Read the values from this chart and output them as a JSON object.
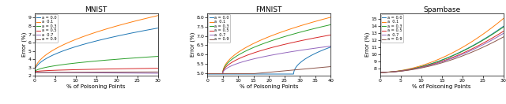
{
  "panels": [
    {
      "title": "MNIST",
      "xlabel": "% of Poisoning Points",
      "ylabel": "Error (%)",
      "xlim": [
        0,
        30
      ],
      "ylim": [
        2.0,
        9.5
      ],
      "yticks": [
        2,
        3,
        4,
        5,
        6,
        7,
        8,
        9
      ],
      "xticks": [
        0,
        5,
        10,
        15,
        20,
        25,
        30
      ],
      "alphas": [
        "0.0",
        "0.1",
        "0.3",
        "0.5",
        "0.7",
        "0.9"
      ],
      "x_max": 30,
      "curves": {
        "0.0": {
          "start": 2.45,
          "end": 7.75,
          "shape": "sqrt",
          "delay": 0
        },
        "0.1": {
          "start": 2.45,
          "end": 9.25,
          "shape": "sqrt",
          "delay": 0
        },
        "0.3": {
          "start": 2.45,
          "end": 4.35,
          "shape": "sqrt",
          "delay": 0
        },
        "0.5": {
          "start": 2.45,
          "end": 2.92,
          "shape": "sqrt_slow",
          "delay": 0
        },
        "0.7": {
          "start": 2.42,
          "end": 2.32,
          "shape": "slight_dec",
          "delay": 0
        },
        "0.9": {
          "start": 2.42,
          "end": 2.48,
          "shape": "slight_inc",
          "delay": 0
        }
      }
    },
    {
      "title": "FMNIST",
      "xlabel": "% of Poisoning Points",
      "ylabel": "Error (%)",
      "xlim": [
        0,
        40
      ],
      "ylim": [
        4.85,
        8.2
      ],
      "yticks": [
        5.0,
        5.5,
        6.0,
        6.5,
        7.0,
        7.5,
        8.0
      ],
      "xticks": [
        0,
        5,
        10,
        15,
        20,
        25,
        30,
        35,
        40
      ],
      "alphas": [
        "0.0",
        "0.1",
        "0.3",
        "0.5",
        "0.7",
        "0.9"
      ],
      "x_max": 40,
      "curves": {
        "0.0": {
          "start": 4.95,
          "end": 6.4,
          "shape": "delayed_sqrt",
          "delay": 28
        },
        "0.1": {
          "start": 4.97,
          "end": 8.0,
          "shape": "sqrt_start5",
          "delay": 0
        },
        "0.3": {
          "start": 4.97,
          "end": 7.6,
          "shape": "sqrt_start5",
          "delay": 0
        },
        "0.5": {
          "start": 4.97,
          "end": 7.05,
          "shape": "sqrt_start5",
          "delay": 0
        },
        "0.7": {
          "start": 4.97,
          "end": 6.45,
          "shape": "sqrt_start5",
          "delay": 0
        },
        "0.9": {
          "start": 4.97,
          "end": 5.35,
          "shape": "flat_then_rise",
          "delay": 0
        }
      }
    },
    {
      "title": "Spambase",
      "xlabel": "% of Poisoning Points",
      "ylabel": "Error (%)",
      "xlim": [
        0,
        30
      ],
      "ylim": [
        7.0,
        15.8
      ],
      "yticks": [
        8,
        9,
        10,
        11,
        12,
        13,
        14,
        15
      ],
      "xticks": [
        0,
        5,
        10,
        15,
        20,
        25,
        30
      ],
      "alphas": [
        "0.0",
        "0.1",
        "0.3",
        "0.5",
        "0.7",
        "0.9"
      ],
      "x_max": 30,
      "curves": {
        "0.0": {
          "start": 7.5,
          "end": 14.0,
          "shape": "convex",
          "delay": 0
        },
        "0.1": {
          "start": 7.5,
          "end": 15.1,
          "shape": "convex",
          "delay": 0
        },
        "0.3": {
          "start": 7.5,
          "end": 13.9,
          "shape": "convex",
          "delay": 0
        },
        "0.5": {
          "start": 7.5,
          "end": 13.3,
          "shape": "convex",
          "delay": 0
        },
        "0.7": {
          "start": 7.5,
          "end": 13.0,
          "shape": "convex",
          "delay": 0
        },
        "0.9": {
          "start": 7.5,
          "end": 12.5,
          "shape": "convex",
          "delay": 0
        }
      }
    }
  ],
  "colors": {
    "0.0": "#1f77b4",
    "0.1": "#ff7f0e",
    "0.3": "#2ca02c",
    "0.5": "#d62728",
    "0.7": "#9467bd",
    "0.9": "#8c564b"
  },
  "legend_labels": {
    "0.0": "a = 0.0",
    "0.1": "a  0.1",
    "0.3": "a = 0.3",
    "0.5": "a = 0.5",
    "0.7": "a  0.7",
    "0.9": "a = 0.9"
  }
}
